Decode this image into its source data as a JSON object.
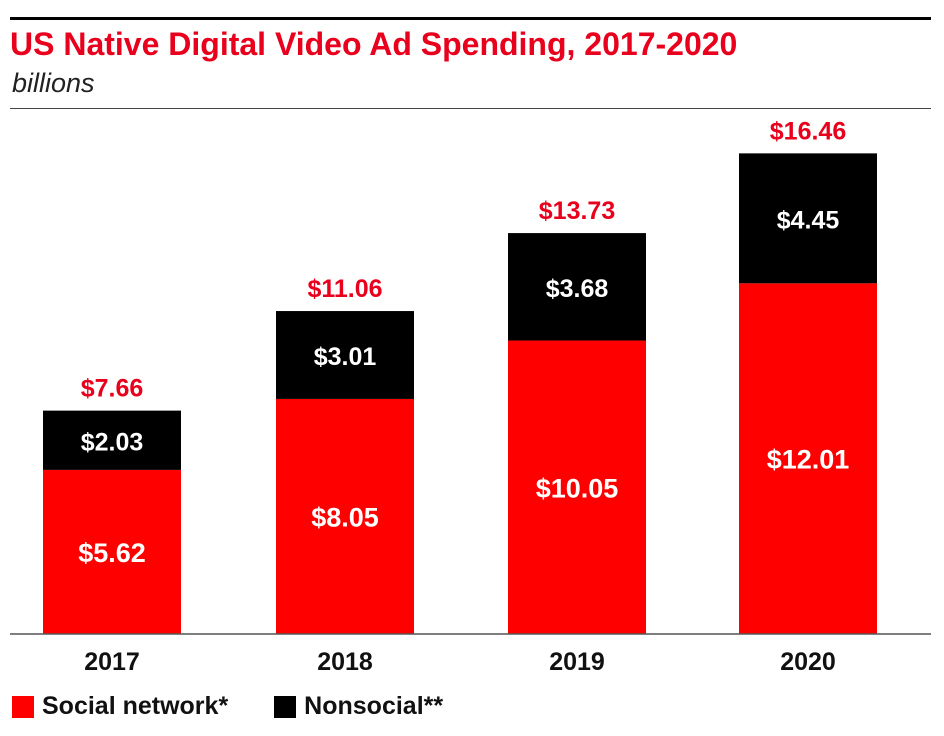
{
  "colors": {
    "accent": "#e8001c",
    "black": "#000000"
  },
  "chart_data": {
    "type": "bar",
    "stacked": true,
    "title": "US Native Digital Video Ad Spending, 2017-2020",
    "subtitle": "billions",
    "categories": [
      "2017",
      "2018",
      "2019",
      "2020"
    ],
    "series": [
      {
        "name": "Social network*",
        "color": "#ff0000",
        "values": [
          5.62,
          8.05,
          10.05,
          12.01
        ],
        "labels": [
          "$5.62",
          "$8.05",
          "$10.05",
          "$12.01"
        ]
      },
      {
        "name": "Nonsocial**",
        "color": "#000000",
        "values": [
          2.03,
          3.01,
          3.68,
          4.45
        ],
        "labels": [
          "$2.03",
          "$3.01",
          "$3.68",
          "$4.45"
        ]
      }
    ],
    "totals": [
      7.66,
      11.06,
      13.73,
      16.46
    ],
    "total_labels": [
      "$7.66",
      "$11.06",
      "$13.73",
      "$16.46"
    ],
    "ylim": [
      0,
      18
    ],
    "grid": false,
    "legend_position": "bottom-left"
  }
}
